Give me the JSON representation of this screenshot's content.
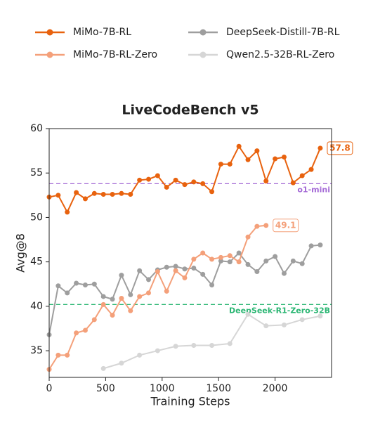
{
  "chart_data": {
    "type": "line",
    "title": "LiveCodeBench v5",
    "x_label": "Training Steps",
    "y_label": "Avg@8",
    "xlim": [
      0,
      2500
    ],
    "ylim": [
      32,
      60
    ],
    "xticks": [
      0,
      500,
      1000,
      1500,
      2000
    ],
    "yticks": [
      35,
      40,
      45,
      50,
      55,
      60
    ],
    "series": [
      {
        "name": "MiMo-7B-RL",
        "color": "#e8620e",
        "x": [
          0,
          80,
          160,
          240,
          320,
          400,
          480,
          560,
          640,
          720,
          800,
          880,
          960,
          1040,
          1120,
          1200,
          1280,
          1360,
          1440,
          1520,
          1600,
          1680,
          1760,
          1840,
          1920,
          2000,
          2080,
          2160,
          2240,
          2320,
          2400
        ],
        "values": [
          52.3,
          52.5,
          50.6,
          52.8,
          52.1,
          52.7,
          52.6,
          52.6,
          52.7,
          52.6,
          54.2,
          54.3,
          54.7,
          53.4,
          54.2,
          53.7,
          54.0,
          53.8,
          52.9,
          56.0,
          56.0,
          58.0,
          56.5,
          57.5,
          54.1,
          56.6,
          56.8,
          53.9,
          54.7,
          55.4,
          57.8
        ]
      },
      {
        "name": "MiMo-7B-RL-Zero",
        "color": "#f4a07a",
        "x": [
          0,
          80,
          160,
          240,
          320,
          400,
          480,
          560,
          640,
          720,
          800,
          880,
          960,
          1040,
          1120,
          1200,
          1280,
          1360,
          1440,
          1520,
          1600,
          1680,
          1760,
          1840,
          1920
        ],
        "values": [
          32.9,
          34.5,
          34.5,
          37.0,
          37.3,
          38.5,
          40.2,
          39.0,
          40.9,
          39.5,
          41.1,
          41.5,
          43.9,
          41.7,
          44.0,
          43.2,
          45.3,
          46.0,
          45.3,
          45.5,
          45.7,
          45.0,
          47.8,
          49.0,
          49.1
        ]
      },
      {
        "name": "DeepSeek-Distill-7B-RL",
        "color": "#9e9e9e",
        "x": [
          0,
          80,
          160,
          240,
          320,
          400,
          480,
          560,
          640,
          720,
          800,
          880,
          960,
          1040,
          1120,
          1200,
          1280,
          1360,
          1440,
          1520,
          1600,
          1680,
          1760,
          1840,
          1920,
          2000,
          2080,
          2160,
          2240,
          2320,
          2400
        ],
        "values": [
          36.8,
          42.3,
          41.5,
          42.6,
          42.4,
          42.5,
          41.1,
          40.8,
          43.5,
          41.3,
          44.0,
          43.0,
          44.1,
          44.4,
          44.5,
          44.2,
          44.3,
          43.6,
          42.4,
          45.1,
          45.0,
          46.0,
          44.7,
          43.9,
          45.1,
          45.6,
          43.7,
          45.1,
          44.8,
          46.8,
          46.9
        ]
      },
      {
        "name": "Qwen2.5-32B-RL-Zero",
        "color": "#d6d6d6",
        "x": [
          480,
          640,
          800,
          960,
          1120,
          1280,
          1440,
          1600,
          1760,
          1920,
          2080,
          2240,
          2400
        ],
        "values": [
          33.0,
          33.6,
          34.5,
          35.0,
          35.5,
          35.6,
          35.6,
          35.8,
          39.1,
          37.8,
          37.9,
          38.5,
          38.9
        ]
      }
    ],
    "reference_lines": [
      {
        "label": "o1-mini",
        "value": 53.8,
        "color": "#a46ad6"
      },
      {
        "label": "DeepSeek-R1-Zero-32B",
        "value": 40.2,
        "color": "#2bb673"
      }
    ]
  }
}
